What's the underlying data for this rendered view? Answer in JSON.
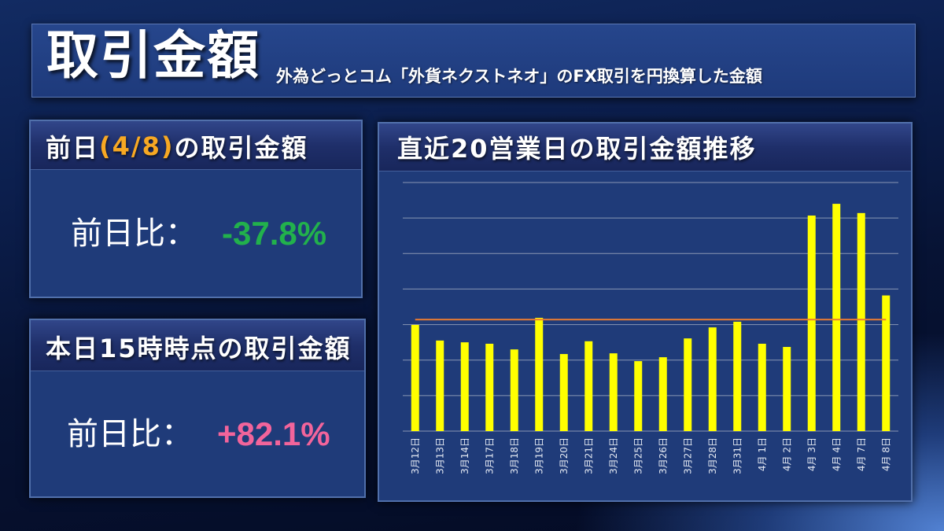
{
  "header": {
    "title": "取引金額",
    "subtitle": "外為どっとコム「外貨ネクストネオ」のFX取引を円換算した金額"
  },
  "prev_day_panel": {
    "title_prefix": "前日",
    "title_date": "(4/8)",
    "title_suffix": "の取引金額",
    "title_date_color": "#f7a823",
    "comparison_label": "前日比：",
    "comparison_value": "-37.8%",
    "comparison_value_color": "#22b14c"
  },
  "today_panel": {
    "title": "本日15時時点の取引金額",
    "comparison_label": "前日比：",
    "comparison_value": "+82.1%",
    "comparison_value_color": "#f2649b"
  },
  "chart_data": {
    "type": "bar",
    "title": "直近20営業日の取引金額推移",
    "categories": [
      "3月12日",
      "3月13日",
      "3月14日",
      "3月17日",
      "3月18日",
      "3月19日",
      "3月20日",
      "3月21日",
      "3月24日",
      "3月25日",
      "3月26日",
      "3月27日",
      "3月28日",
      "3月31日",
      "4月 1日",
      "4月 2日",
      "4月 3日",
      "4月 4日",
      "4月 7日",
      "4月 8日"
    ],
    "series": [
      {
        "values": [
          2.99,
          2.55,
          2.5,
          2.46,
          2.3,
          3.19,
          2.17,
          2.53,
          2.19,
          1.97,
          2.08,
          2.61,
          2.92,
          3.08,
          2.46,
          2.37,
          6.07,
          6.4,
          6.14,
          3.82
        ],
        "color": "#ffff00"
      }
    ],
    "reference_line": {
      "value": 3.14,
      "color": "#ed7d31"
    },
    "ylim": [
      0,
      7
    ],
    "grid": true
  }
}
